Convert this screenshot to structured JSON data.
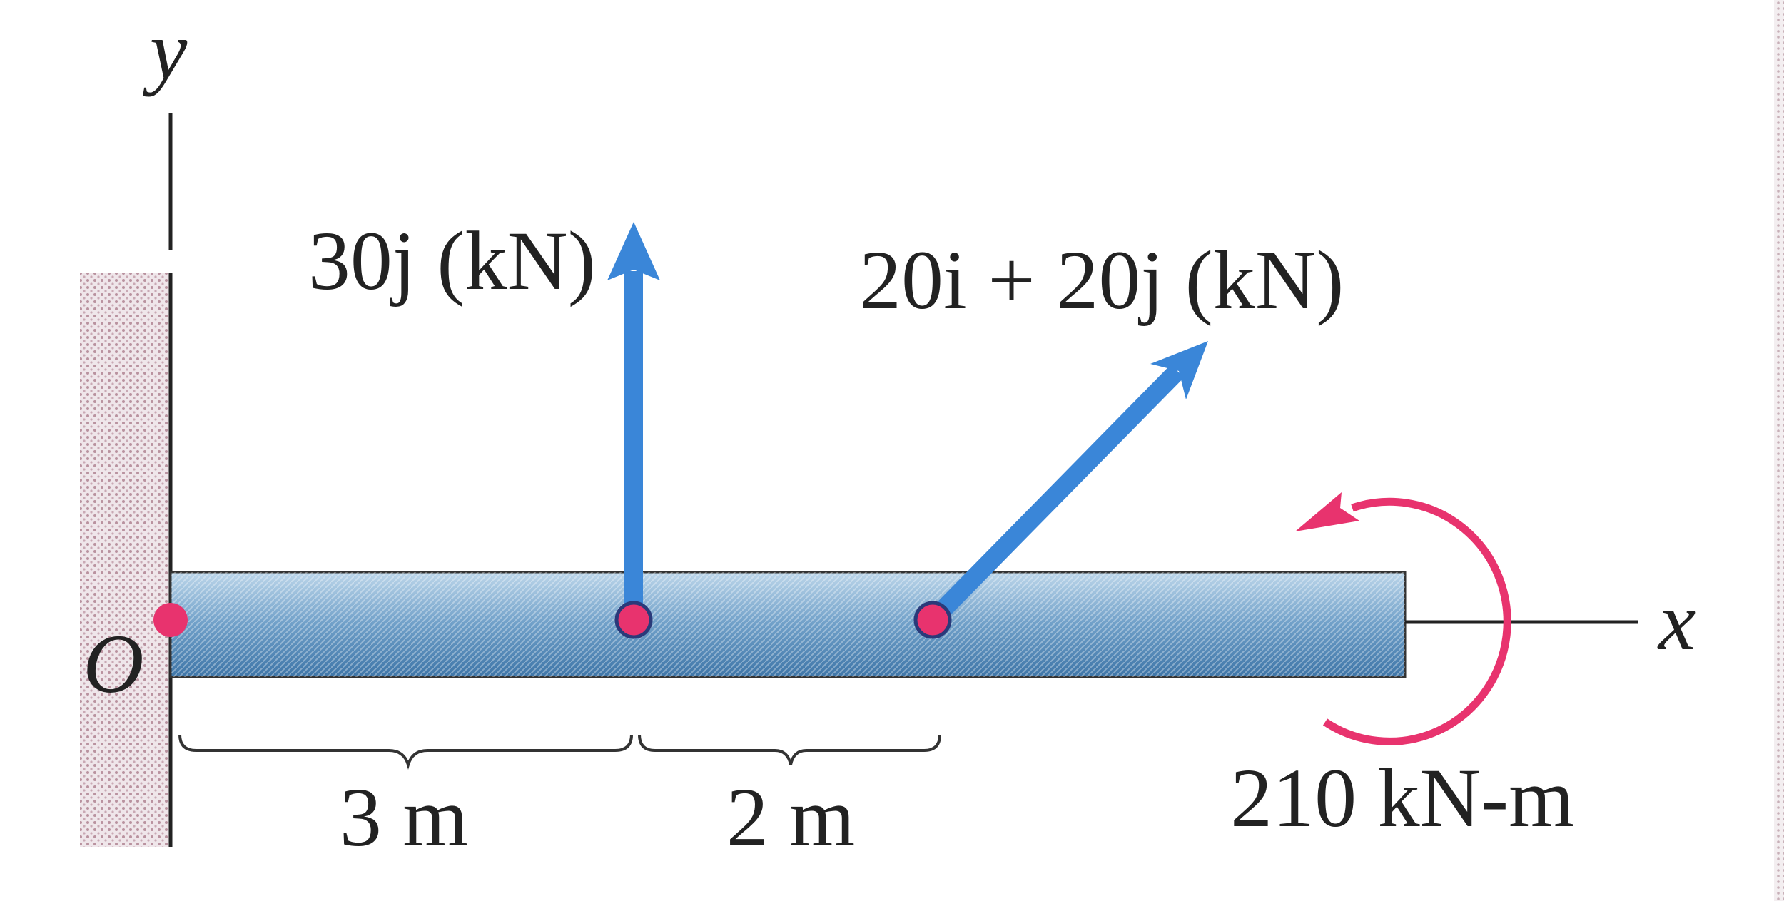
{
  "axes": {
    "y": "y",
    "x": "x",
    "origin": "O"
  },
  "forces": [
    {
      "label": "30j (kN)"
    },
    {
      "label": "20i + 20j (kN)"
    }
  ],
  "moment": {
    "label": "210 kN-m"
  },
  "dimensions": [
    {
      "label": "3 m"
    },
    {
      "label": "2 m"
    }
  ]
}
